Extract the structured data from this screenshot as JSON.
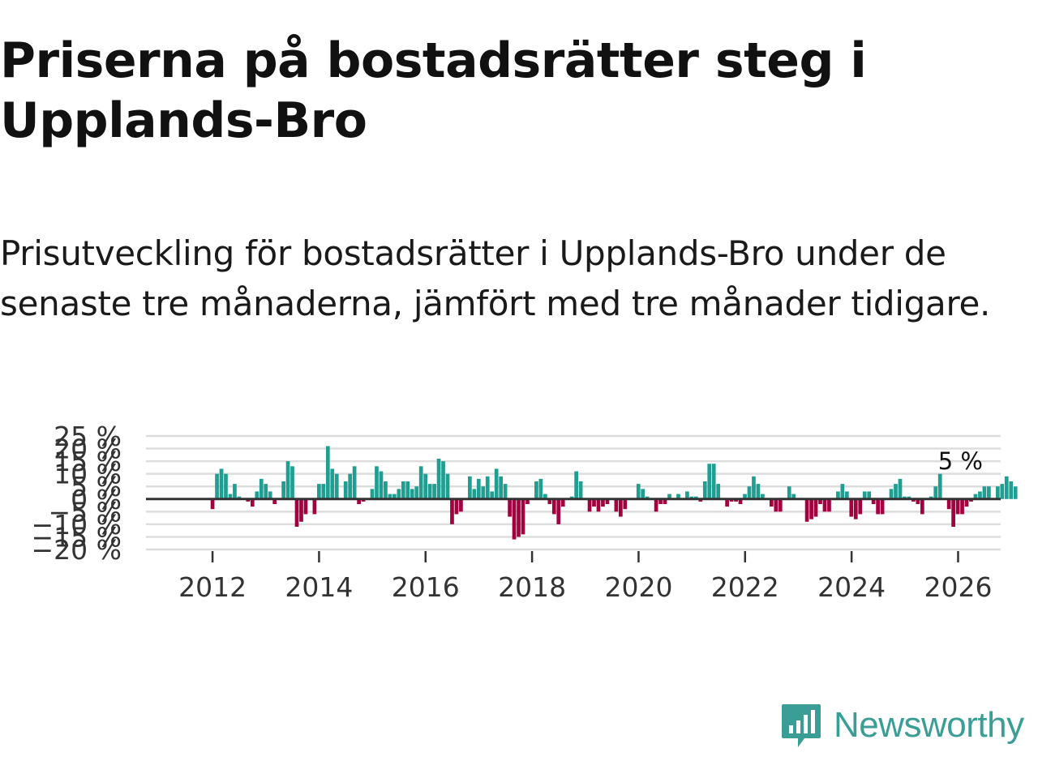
{
  "header": {
    "title": "Priserna på bostadsrätter steg i Upplands-Bro",
    "subtitle": "Prisutveckling för bostadsrätter i Upplands-Bro under de senaste tre månaderna, jämfört med tre månader tidigare."
  },
  "colors": {
    "positive": "#1f9e91",
    "negative": "#a3003f",
    "zero_line": "#333333",
    "grid": "#dddddd",
    "brand": "#3a9e96"
  },
  "chart_data": {
    "type": "bar",
    "title": "",
    "xlabel": "",
    "ylabel": "",
    "x_start": 2011.5,
    "x_step": 0.0833,
    "x_ticks": [
      2012,
      2014,
      2016,
      2018,
      2020,
      2022,
      2024,
      2026
    ],
    "x_tick_labels": [
      "2012",
      "2014",
      "2016",
      "2018",
      "2020",
      "2022",
      "2024",
      "2026"
    ],
    "xlim": [
      2010.75,
      2026.8
    ],
    "ylim": [
      -20,
      25
    ],
    "y_ticks": [
      -20,
      -15,
      -10,
      -5,
      0,
      5,
      10,
      15,
      20,
      25
    ],
    "y_tick_labels": [
      "−20 %",
      "−15 %",
      "−10 %",
      "−5 %",
      "0 %",
      "5 %",
      "10 %",
      "15 %",
      "20 %",
      "25 %"
    ],
    "values": [
      0,
      0,
      0,
      0,
      0,
      0,
      -4,
      10,
      12,
      10,
      2,
      6,
      1,
      0,
      -1,
      -3,
      3,
      8,
      6,
      3,
      -2,
      0,
      7,
      15,
      13,
      -11,
      -9,
      -6,
      0,
      -6,
      6,
      6,
      21,
      12,
      10,
      0,
      7,
      10,
      13,
      -2,
      -1,
      0,
      4,
      13,
      11,
      7,
      2,
      2,
      4,
      7,
      7,
      4,
      5,
      13,
      10,
      6,
      6,
      16,
      15,
      10,
      -10,
      -6,
      -5,
      0,
      9,
      4,
      8,
      5,
      9,
      3,
      12,
      9,
      6,
      -7,
      -16,
      -15,
      -14,
      -2,
      0,
      7,
      8,
      2,
      -2,
      -6,
      -10,
      -3,
      0,
      1,
      11,
      7,
      0,
      -5,
      -3,
      -5,
      -3,
      -2,
      0,
      -5,
      -7,
      -4,
      0,
      0,
      6,
      4,
      1,
      0,
      -5,
      -2,
      -2,
      2,
      0,
      2,
      0,
      3,
      1,
      1,
      -1,
      7,
      14,
      14,
      6,
      0,
      -3,
      -1,
      -1,
      -2,
      2,
      5,
      9,
      6,
      2,
      0,
      -3,
      -5,
      -5,
      0,
      5,
      2,
      0,
      0,
      -9,
      -8,
      -7,
      -2,
      -5,
      -5,
      0,
      3,
      6,
      3,
      -7,
      -8,
      -6,
      3,
      3,
      -2,
      -6,
      -6,
      0,
      4,
      6,
      8,
      1,
      1,
      -1,
      -2,
      -6,
      0,
      1,
      5,
      10,
      0,
      -4,
      -11,
      -6,
      -6,
      -3,
      -1,
      2,
      3,
      5,
      5,
      0,
      5,
      6,
      9,
      7,
      5
    ],
    "annotation": "5 %"
  },
  "logo": {
    "text": "Newsworthy",
    "icon": "newsworthy-chart-logo-icon"
  }
}
